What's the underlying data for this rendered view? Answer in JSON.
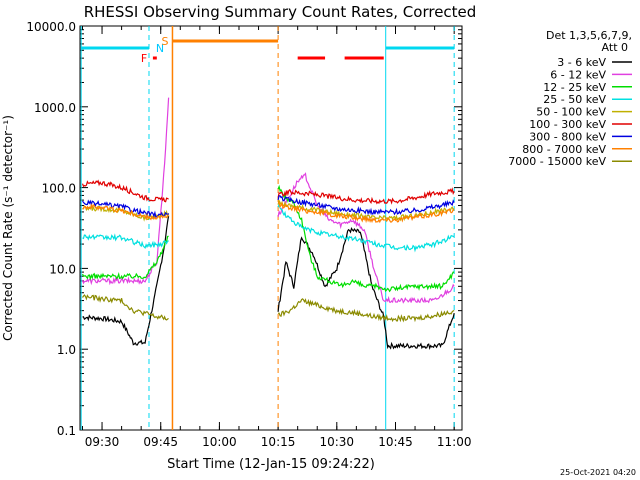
{
  "chart_data": {
    "type": "line",
    "title": "RHESSI Observing Summary Count Rates, Corrected",
    "xlabel": "Start Time (12-Jan-15 09:24:22)",
    "ylabel": "Corrected Count Rate (s⁻¹ detector⁻¹)",
    "yscale": "log",
    "ylim": [
      0.1,
      10000
    ],
    "xlim": [
      "09:24:22",
      "11:02:00"
    ],
    "x_tick_labels": [
      "09:30",
      "09:45",
      "10:00",
      "10:15",
      "10:30",
      "10:45",
      "11:00"
    ],
    "y_tick_labels": [
      "0.1",
      "1.0",
      "10.0",
      "100.0",
      "1000.0",
      "10000.0"
    ],
    "legend_header": [
      "Det 1,3,5,6,7,9,",
      "Att 0"
    ],
    "legend_position": "right",
    "footer_date": "25-Oct-2021 04:20",
    "flags": [
      {
        "label": "F",
        "color": "#ff0000"
      },
      {
        "label": "N",
        "color": "#00c8ff"
      },
      {
        "label": "S",
        "color": "#ff8000"
      }
    ],
    "data_gap": {
      "start": "09:48:00",
      "end": "10:15:00"
    },
    "series": [
      {
        "name": "3 - 6 keV",
        "color": "#000000",
        "points": [
          [
            "09:25",
            2.5
          ],
          [
            "09:30",
            2.4
          ],
          [
            "09:35",
            2.2
          ],
          [
            "09:38",
            1.2
          ],
          [
            "09:41",
            1.2
          ],
          [
            "09:44",
            6
          ],
          [
            "09:46",
            20
          ],
          [
            "09:47",
            45
          ],
          [
            "10:15",
            3
          ],
          [
            "10:17",
            12
          ],
          [
            "10:19",
            6
          ],
          [
            "10:21",
            25
          ],
          [
            "10:24",
            15
          ],
          [
            "10:27",
            6
          ],
          [
            "10:30",
            10
          ],
          [
            "10:33",
            30
          ],
          [
            "10:36",
            28
          ],
          [
            "10:39",
            6
          ],
          [
            "10:42",
            2.5
          ],
          [
            "10:43",
            1.1
          ],
          [
            "10:50",
            1.1
          ],
          [
            "10:57",
            1.1
          ],
          [
            "11:00",
            2.8
          ]
        ]
      },
      {
        "name": "6 - 12 keV",
        "color": "#e040e0",
        "points": [
          [
            "09:25",
            7
          ],
          [
            "09:35",
            7
          ],
          [
            "09:41",
            7
          ],
          [
            "09:44",
            12
          ],
          [
            "09:46",
            200
          ],
          [
            "09:47",
            1300
          ],
          [
            "10:15",
            45
          ],
          [
            "10:18",
            80
          ],
          [
            "10:20",
            120
          ],
          [
            "10:22",
            140
          ],
          [
            "10:25",
            60
          ],
          [
            "10:28",
            40
          ],
          [
            "10:31",
            35
          ],
          [
            "10:34",
            40
          ],
          [
            "10:37",
            30
          ],
          [
            "10:40",
            8
          ],
          [
            "10:42",
            4
          ],
          [
            "10:48",
            4
          ],
          [
            "10:55",
            4
          ],
          [
            "11:00",
            6
          ]
        ]
      },
      {
        "name": "12 - 25 keV",
        "color": "#00dd00",
        "points": [
          [
            "09:25",
            8
          ],
          [
            "09:35",
            8
          ],
          [
            "09:41",
            8
          ],
          [
            "09:44",
            12
          ],
          [
            "09:47",
            25
          ],
          [
            "10:15",
            100
          ],
          [
            "10:17",
            75
          ],
          [
            "10:19",
            65
          ],
          [
            "10:21",
            40
          ],
          [
            "10:23",
            15
          ],
          [
            "10:25",
            8
          ],
          [
            "10:28",
            7
          ],
          [
            "10:31",
            6
          ],
          [
            "10:34",
            7
          ],
          [
            "10:37",
            6
          ],
          [
            "10:40",
            6
          ],
          [
            "10:43",
            5.5
          ],
          [
            "10:50",
            6
          ],
          [
            "10:57",
            6
          ],
          [
            "11:00",
            9
          ]
        ]
      },
      {
        "name": "25 - 50 keV",
        "color": "#00e0e0",
        "points": [
          [
            "09:25",
            25
          ],
          [
            "09:30",
            24
          ],
          [
            "09:35",
            24
          ],
          [
            "09:41",
            19
          ],
          [
            "09:45",
            20
          ],
          [
            "09:47",
            22
          ],
          [
            "10:15",
            60
          ],
          [
            "10:17",
            45
          ],
          [
            "10:21",
            32
          ],
          [
            "10:25",
            28
          ],
          [
            "10:30",
            25
          ],
          [
            "10:35",
            23
          ],
          [
            "10:40",
            20
          ],
          [
            "10:45",
            18
          ],
          [
            "10:50",
            18
          ],
          [
            "10:55",
            20
          ],
          [
            "11:00",
            25
          ]
        ]
      },
      {
        "name": "50 - 100 keV",
        "color": "#c0b000",
        "points": [
          [
            "09:25",
            55
          ],
          [
            "09:30",
            55
          ],
          [
            "09:35",
            52
          ],
          [
            "09:41",
            42
          ],
          [
            "09:45",
            45
          ],
          [
            "09:47",
            48
          ],
          [
            "10:15",
            65
          ],
          [
            "10:18",
            60
          ],
          [
            "10:22",
            55
          ],
          [
            "10:26",
            52
          ],
          [
            "10:30",
            48
          ],
          [
            "10:35",
            45
          ],
          [
            "10:40",
            42
          ],
          [
            "10:45",
            42
          ],
          [
            "10:50",
            45
          ],
          [
            "10:55",
            50
          ],
          [
            "11:00",
            55
          ]
        ]
      },
      {
        "name": "100 - 300 keV",
        "color": "#e00000",
        "points": [
          [
            "09:25",
            110
          ],
          [
            "09:30",
            115
          ],
          [
            "09:35",
            100
          ],
          [
            "09:41",
            75
          ],
          [
            "09:45",
            70
          ],
          [
            "09:47",
            72
          ],
          [
            "10:15",
            80
          ],
          [
            "10:18",
            88
          ],
          [
            "10:22",
            85
          ],
          [
            "10:26",
            80
          ],
          [
            "10:30",
            75
          ],
          [
            "10:35",
            70
          ],
          [
            "10:40",
            68
          ],
          [
            "10:45",
            68
          ],
          [
            "10:50",
            75
          ],
          [
            "10:55",
            85
          ],
          [
            "11:00",
            90
          ]
        ]
      },
      {
        "name": "300 - 800 keV",
        "color": "#0000e0",
        "points": [
          [
            "09:25",
            65
          ],
          [
            "09:30",
            62
          ],
          [
            "09:35",
            58
          ],
          [
            "09:41",
            48
          ],
          [
            "09:45",
            45
          ],
          [
            "09:47",
            48
          ],
          [
            "10:15",
            75
          ],
          [
            "10:18",
            70
          ],
          [
            "10:22",
            65
          ],
          [
            "10:26",
            60
          ],
          [
            "10:30",
            55
          ],
          [
            "10:35",
            52
          ],
          [
            "10:40",
            50
          ],
          [
            "10:45",
            50
          ],
          [
            "10:50",
            52
          ],
          [
            "10:55",
            58
          ],
          [
            "11:00",
            65
          ]
        ]
      },
      {
        "name": "800 - 7000 keV",
        "color": "#ff8000",
        "points": [
          [
            "09:25",
            58
          ],
          [
            "09:30",
            57
          ],
          [
            "09:35",
            52
          ],
          [
            "09:41",
            43
          ],
          [
            "09:45",
            42
          ],
          [
            "09:47",
            44
          ],
          [
            "10:15",
            62
          ],
          [
            "10:18",
            57
          ],
          [
            "10:22",
            52
          ],
          [
            "10:26",
            49
          ],
          [
            "10:30",
            45
          ],
          [
            "10:35",
            42
          ],
          [
            "10:40",
            40
          ],
          [
            "10:45",
            40
          ],
          [
            "10:50",
            43
          ],
          [
            "10:55",
            47
          ],
          [
            "11:00",
            52
          ]
        ]
      },
      {
        "name": "7000 - 15000 keV",
        "color": "#8b8b00",
        "points": [
          [
            "09:25",
            4.5
          ],
          [
            "09:30",
            4.2
          ],
          [
            "09:35",
            4
          ],
          [
            "09:38",
            3
          ],
          [
            "09:41",
            2.8
          ],
          [
            "09:44",
            2.5
          ],
          [
            "09:47",
            2.4
          ],
          [
            "10:15",
            2.6
          ],
          [
            "10:18",
            3
          ],
          [
            "10:21",
            4
          ],
          [
            "10:25",
            3.5
          ],
          [
            "10:30",
            3
          ],
          [
            "10:35",
            2.8
          ],
          [
            "10:40",
            2.5
          ],
          [
            "10:45",
            2.4
          ],
          [
            "10:50",
            2.4
          ],
          [
            "10:55",
            2.6
          ],
          [
            "11:00",
            3
          ]
        ]
      }
    ]
  }
}
